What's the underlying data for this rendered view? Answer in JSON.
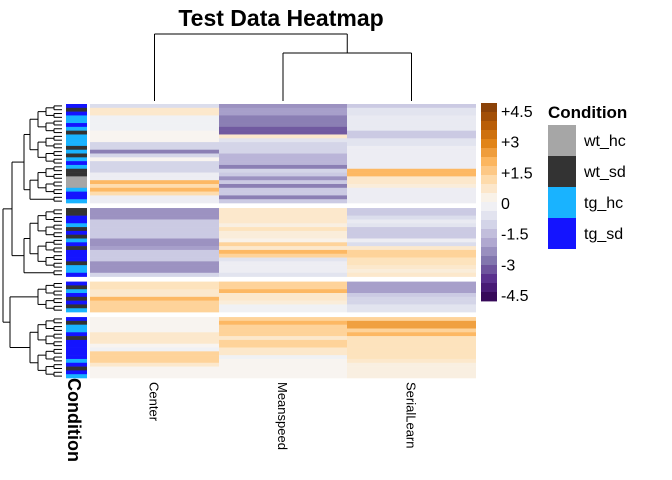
{
  "chart_data": {
    "type": "heatmap",
    "title": "Test Data Heatmap",
    "columns": [
      "Center",
      "Meanspeed",
      "SerialLearn"
    ],
    "color_scale": {
      "ticks": [
        "+4.5",
        "+3",
        "+1.5",
        "0",
        "-1.5",
        "-3",
        "-4.5"
      ],
      "range": [
        -4.5,
        4.5
      ],
      "low_color": "#2d004b",
      "mid_color": "#f7f7f7",
      "high_color": "#7f3b08"
    },
    "annotation": {
      "title": "Condition",
      "levels": [
        {
          "name": "wt_hc",
          "color": "#a6a6a6"
        },
        {
          "name": "wt_sd",
          "color": "#333333"
        },
        {
          "name": "tg_hc",
          "color": "#19b3ff"
        },
        {
          "name": "tg_sd",
          "color": "#1414ff"
        }
      ]
    },
    "row_clusters": [
      {
        "rows": [
          {
            "condition": "tg_sd",
            "values": [
              -0.8,
              -2.2,
              -1.2
            ]
          },
          {
            "condition": "wt_sd",
            "values": [
              0.6,
              -2.0,
              -0.6
            ]
          },
          {
            "condition": "tg_sd",
            "values": [
              0.6,
              -2.0,
              -0.6
            ]
          },
          {
            "condition": "tg_hc",
            "values": [
              -0.2,
              -2.5,
              -0.4
            ]
          },
          {
            "condition": "tg_hc",
            "values": [
              -0.2,
              -2.5,
              -0.4
            ]
          },
          {
            "condition": "tg_sd",
            "values": [
              -0.2,
              -2.5,
              -0.4
            ]
          },
          {
            "condition": "tg_hc",
            "values": [
              -0.2,
              -3.0,
              -0.4
            ]
          },
          {
            "condition": "wt_sd",
            "values": [
              0.1,
              -3.0,
              -1.2
            ]
          },
          {
            "condition": "tg_hc",
            "values": [
              0.1,
              0.6,
              -1.2
            ]
          },
          {
            "condition": "tg_hc",
            "values": [
              0.1,
              -0.6,
              -0.6
            ]
          },
          {
            "condition": "tg_hc",
            "values": [
              -1.0,
              -1.0,
              -0.6
            ]
          },
          {
            "condition": "wt_sd",
            "values": [
              -1.0,
              -1.0,
              -0.3
            ]
          },
          {
            "condition": "tg_hc",
            "values": [
              -2.5,
              -1.0,
              -0.3
            ]
          },
          {
            "condition": "wt_sd",
            "values": [
              -1.0,
              -1.6,
              -0.3
            ]
          },
          {
            "condition": "tg_hc",
            "values": [
              0.1,
              -1.6,
              -0.3
            ]
          },
          {
            "condition": "tg_sd",
            "values": [
              -1.0,
              -1.6,
              -0.3
            ]
          },
          {
            "condition": "tg_hc",
            "values": [
              -1.0,
              -2.5,
              -0.3
            ]
          },
          {
            "condition": "wt_sd",
            "values": [
              -1.0,
              -1.0,
              1.8
            ]
          },
          {
            "condition": "wt_sd",
            "values": [
              -0.3,
              -1.2,
              1.8
            ]
          },
          {
            "condition": "wt_hc",
            "values": [
              -0.3,
              -2.2,
              0.6
            ]
          },
          {
            "condition": "wt_hc",
            "values": [
              1.8,
              -1.2,
              0.6
            ]
          },
          {
            "condition": "wt_hc",
            "values": [
              1.0,
              -2.5,
              0.4
            ]
          },
          {
            "condition": "tg_hc",
            "values": [
              1.8,
              -1.2,
              -0.3
            ]
          },
          {
            "condition": "tg_sd",
            "values": [
              1.0,
              -1.2,
              -0.3
            ]
          },
          {
            "condition": "tg_sd",
            "values": [
              -0.3,
              -2.5,
              -0.3
            ]
          },
          {
            "condition": "tg_hc",
            "values": [
              -0.3,
              -1.2,
              -0.3
            ]
          }
        ]
      },
      {
        "rows": [
          {
            "condition": "wt_sd",
            "values": [
              -2.2,
              0.6,
              -1.2
            ]
          },
          {
            "condition": "wt_sd",
            "values": [
              -2.2,
              0.6,
              -1.2
            ]
          },
          {
            "condition": "tg_sd",
            "values": [
              -2.2,
              0.6,
              -0.8
            ]
          },
          {
            "condition": "tg_sd",
            "values": [
              -1.2,
              0.6,
              -0.4
            ]
          },
          {
            "condition": "tg_hc",
            "values": [
              -1.2,
              0.3,
              -0.6
            ]
          },
          {
            "condition": "wt_sd",
            "values": [
              -1.2,
              0.8,
              -1.2
            ]
          },
          {
            "condition": "tg_sd",
            "values": [
              -1.2,
              0.4,
              -1.2
            ]
          },
          {
            "condition": "wt_sd",
            "values": [
              -1.2,
              0.4,
              -1.2
            ]
          },
          {
            "condition": "tg_hc",
            "values": [
              -2.2,
              0.2,
              -0.3
            ]
          },
          {
            "condition": "tg_sd",
            "values": [
              -2.2,
              1.2,
              -0.8
            ]
          },
          {
            "condition": "wt_sd",
            "values": [
              -2.0,
              0.6,
              0.6
            ]
          },
          {
            "condition": "tg_sd",
            "values": [
              -1.2,
              1.8,
              1.2
            ]
          },
          {
            "condition": "tg_sd",
            "values": [
              -1.2,
              1.2,
              1.2
            ]
          },
          {
            "condition": "tg_sd",
            "values": [
              -1.2,
              -0.6,
              0.8
            ]
          },
          {
            "condition": "wt_sd",
            "values": [
              -2.2,
              -0.3,
              0.8
            ]
          },
          {
            "condition": "tg_hc",
            "values": [
              -2.2,
              -0.3,
              0.6
            ]
          },
          {
            "condition": "tg_hc",
            "values": [
              -2.2,
              -0.3,
              0.4
            ]
          },
          {
            "condition": "tg_sd",
            "values": [
              -1.0,
              -0.6,
              0.6
            ]
          }
        ]
      },
      {
        "rows": [
          {
            "condition": "tg_sd",
            "values": [
              0.8,
              1.2,
              -2.0
            ]
          },
          {
            "condition": "wt_sd",
            "values": [
              0.8,
              1.2,
              -2.0
            ]
          },
          {
            "condition": "tg_hc",
            "values": [
              0.6,
              1.8,
              -2.0
            ]
          },
          {
            "condition": "tg_sd",
            "values": [
              0.6,
              0.6,
              -1.2
            ]
          },
          {
            "condition": "wt_sd",
            "values": [
              1.8,
              0.6,
              -1.0
            ]
          },
          {
            "condition": "tg_sd",
            "values": [
              1.2,
              0.4,
              -1.0
            ]
          },
          {
            "condition": "wt_sd",
            "values": [
              1.2,
              -0.2,
              -0.6
            ]
          },
          {
            "condition": "tg_hc",
            "values": [
              1.2,
              -0.2,
              -0.6
            ]
          }
        ]
      },
      {
        "rows": [
          {
            "condition": "tg_sd",
            "values": [
              0.1,
              1.2,
              1.2
            ]
          },
          {
            "condition": "wt_sd",
            "values": [
              0.1,
              1.8,
              2.2
            ]
          },
          {
            "condition": "tg_hc",
            "values": [
              0.1,
              1.2,
              2.2
            ]
          },
          {
            "condition": "tg_hc",
            "values": [
              0.1,
              1.2,
              1.2
            ]
          },
          {
            "condition": "tg_sd",
            "values": [
              0.6,
              1.2,
              1.8
            ]
          },
          {
            "condition": "wt_sd",
            "values": [
              0.6,
              0.6,
              0.8
            ]
          },
          {
            "condition": "tg_sd",
            "values": [
              0.6,
              1.2,
              0.8
            ]
          },
          {
            "condition": "tg_sd",
            "values": [
              0.1,
              1.2,
              0.8
            ]
          },
          {
            "condition": "tg_sd",
            "values": [
              -0.2,
              0.6,
              0.8
            ]
          },
          {
            "condition": "tg_sd",
            "values": [
              1.2,
              0.6,
              0.8
            ]
          },
          {
            "condition": "tg_sd",
            "values": [
              1.2,
              -0.2,
              0.8
            ]
          },
          {
            "condition": "tg_hc",
            "values": [
              1.2,
              0.1,
              0.6
            ]
          },
          {
            "condition": "tg_sd",
            "values": [
              0.6,
              0.1,
              0.3
            ]
          },
          {
            "condition": "wt_sd",
            "values": [
              0.1,
              0.1,
              0.3
            ]
          },
          {
            "condition": "tg_sd",
            "values": [
              0.1,
              0.1,
              0.3
            ]
          },
          {
            "condition": "tg_hc",
            "values": [
              0.1,
              0.1,
              0.3
            ]
          }
        ]
      }
    ]
  }
}
